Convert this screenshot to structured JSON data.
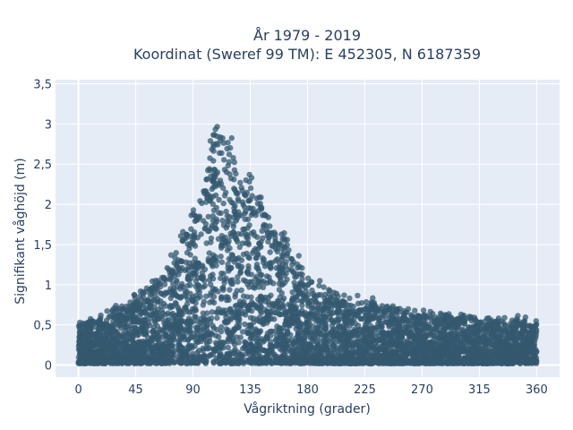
{
  "chart_data": {
    "type": "scatter",
    "title_line1": "År 1979 - 2019",
    "title_line2": "Koordinat (Sweref 99 TM): E 452305, N 6187359",
    "xlabel": "Vågriktning (grader)",
    "ylabel": "Signifikant våghöjd (m)",
    "xlim": [
      -18,
      378
    ],
    "ylim": [
      -0.15,
      3.55
    ],
    "x_ticks": [
      0,
      45,
      90,
      135,
      180,
      225,
      270,
      315,
      360
    ],
    "x_tick_labels": [
      "0",
      "45",
      "90",
      "135",
      "180",
      "225",
      "270",
      "315",
      "360"
    ],
    "y_ticks": [
      0,
      0.5,
      1,
      1.5,
      2,
      2.5,
      3,
      3.5
    ],
    "y_tick_labels": [
      "0",
      "0,5",
      "1",
      "1,5",
      "2",
      "2,5",
      "3",
      "3,5"
    ],
    "grid": true,
    "background_color": "#e5ecf6",
    "marker_color": "#34586f",
    "envelope": {
      "x": [
        0,
        10,
        20,
        30,
        45,
        60,
        75,
        85,
        95,
        100,
        105,
        110,
        115,
        120,
        125,
        130,
        135,
        140,
        145,
        150,
        160,
        170,
        180,
        190,
        200,
        225,
        250,
        270,
        290,
        300,
        315,
        330,
        345,
        360
      ],
      "y_max": [
        0.55,
        0.6,
        0.65,
        0.75,
        0.9,
        1.1,
        1.45,
        1.8,
        2.15,
        2.6,
        3.0,
        3.3,
        3.2,
        3.0,
        2.7,
        2.45,
        2.5,
        2.35,
        2.15,
        2.0,
        1.75,
        1.45,
        1.2,
        1.05,
        0.95,
        0.85,
        0.75,
        0.7,
        0.65,
        0.65,
        0.6,
        0.6,
        0.6,
        0.55
      ]
    }
  }
}
